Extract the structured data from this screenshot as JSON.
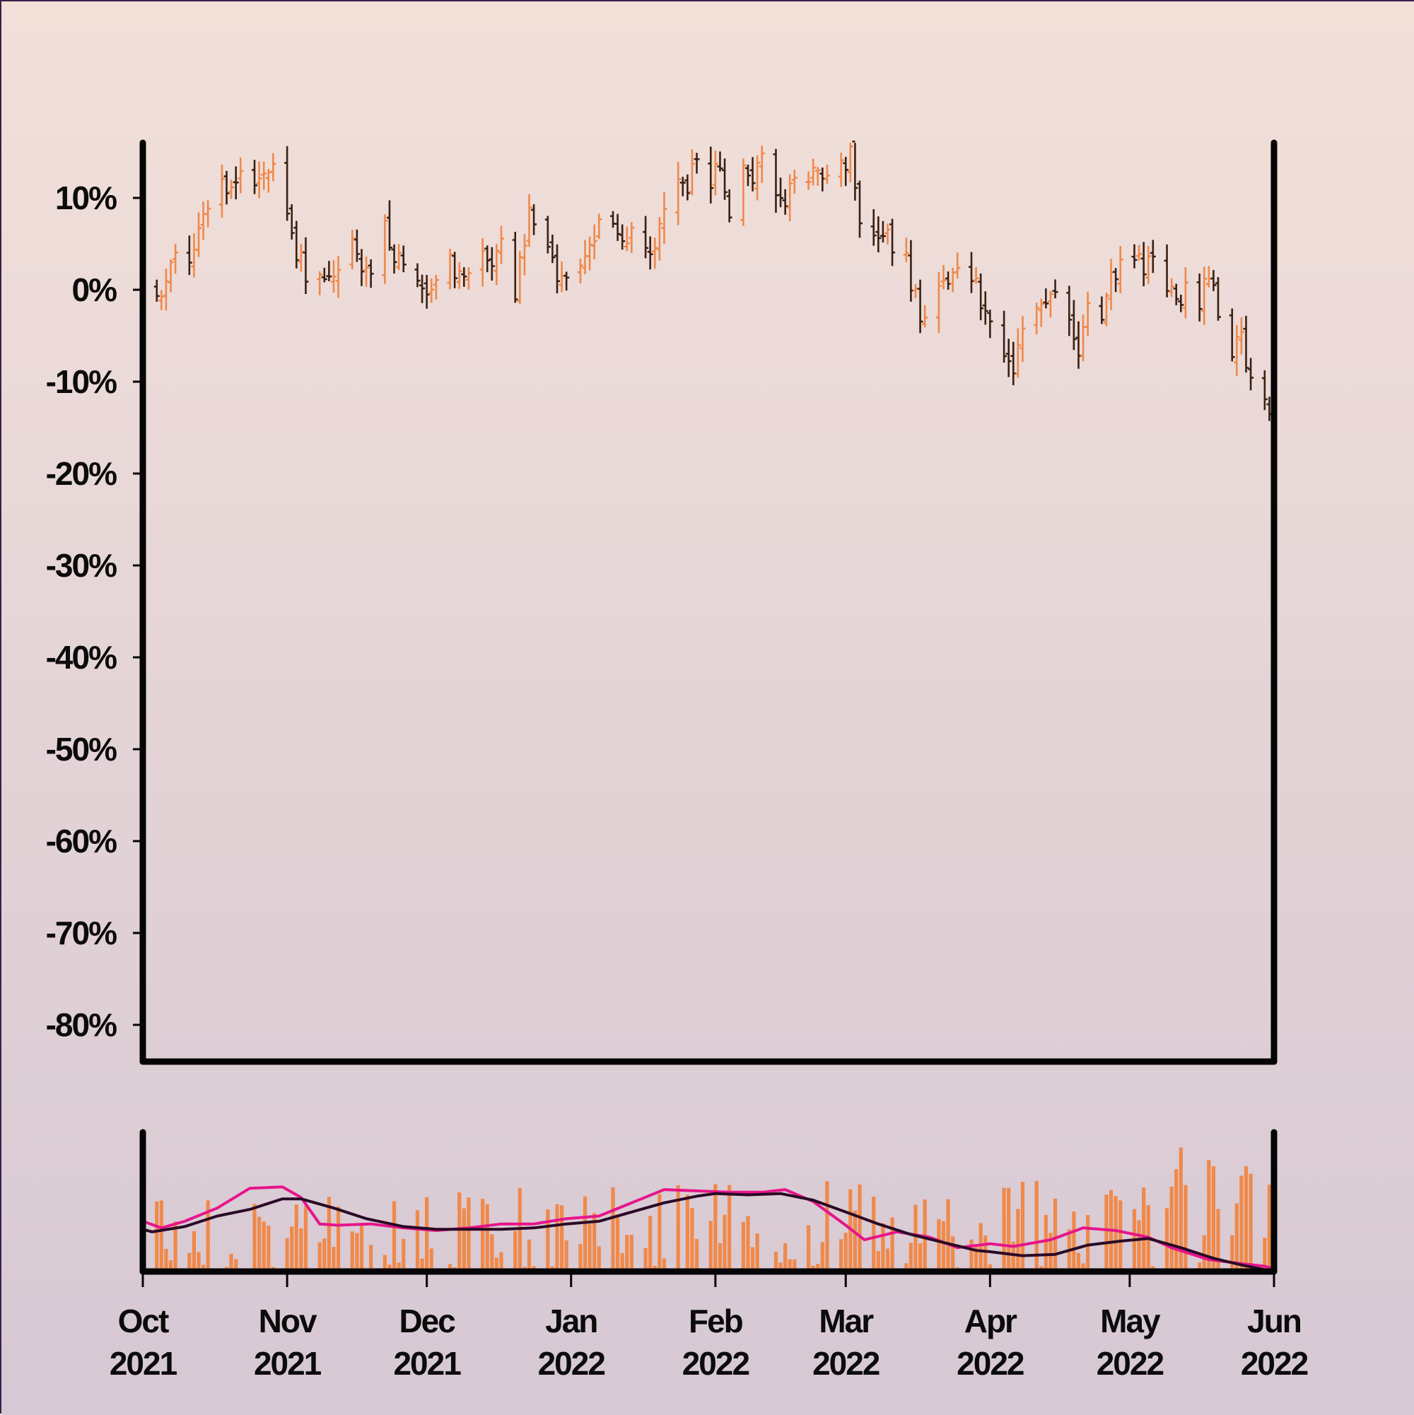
{
  "chart_data": [
    {
      "type": "ohlc",
      "panel": "price",
      "y_axis": {
        "ylim": [
          -84,
          16
        ],
        "ticks": [
          10,
          0,
          -10,
          -20,
          -30,
          -40,
          -50,
          -60,
          -70,
          -80
        ],
        "tick_labels": [
          "10%",
          "0%",
          "-10%",
          "-20%",
          "-30%",
          "-40%",
          "-50%",
          "-60%",
          "-70%",
          "-80%"
        ]
      },
      "x_axis": {
        "range": [
          "2021-10-01",
          "2022-06-01"
        ],
        "ticks": [
          "2021-10-01",
          "2021-11-01",
          "2021-12-01",
          "2022-01-01",
          "2022-02-01",
          "2022-03-01",
          "2022-04-01",
          "2022-05-01",
          "2022-06-01"
        ],
        "tick_labels": [
          [
            "Oct",
            "2021"
          ],
          [
            "Nov",
            "2021"
          ],
          [
            "Dec",
            "2021"
          ],
          [
            "Jan",
            "2022"
          ],
          [
            "Feb",
            "2022"
          ],
          [
            "Mar",
            "2022"
          ],
          [
            "Apr",
            "2022"
          ],
          [
            "May",
            "2022"
          ],
          [
            "Jun",
            "2022"
          ]
        ]
      },
      "close_path_percent_change": [
        [
          "2021-10-01",
          0
        ],
        [
          "2021-10-04",
          -1
        ],
        [
          "2021-10-08",
          3
        ],
        [
          "2021-10-12",
          4
        ],
        [
          "2021-10-15",
          9
        ],
        [
          "2021-10-18",
          12
        ],
        [
          "2021-10-20",
          11
        ],
        [
          "2021-10-22",
          13
        ],
        [
          "2021-10-25",
          11
        ],
        [
          "2021-10-27",
          13
        ],
        [
          "2021-10-29",
          14
        ],
        [
          "2021-11-01",
          8
        ],
        [
          "2021-11-03",
          4
        ],
        [
          "2021-11-05",
          2
        ],
        [
          "2021-11-08",
          1
        ],
        [
          "2021-11-11",
          2
        ],
        [
          "2021-11-15",
          6
        ],
        [
          "2021-11-17",
          3
        ],
        [
          "2021-11-19",
          1
        ],
        [
          "2021-11-22",
          7
        ],
        [
          "2021-11-24",
          4
        ],
        [
          "2021-11-26",
          2
        ],
        [
          "2021-11-30",
          0
        ],
        [
          "2021-12-02",
          -1
        ],
        [
          "2021-12-06",
          3
        ],
        [
          "2021-12-09",
          1
        ],
        [
          "2021-12-13",
          4
        ],
        [
          "2021-12-15",
          2
        ],
        [
          "2021-12-17",
          5
        ],
        [
          "2021-12-20",
          0
        ],
        [
          "2021-12-23",
          8
        ],
        [
          "2021-12-27",
          4
        ],
        [
          "2021-12-29",
          1
        ],
        [
          "2022-01-03",
          2
        ],
        [
          "2022-01-05",
          6
        ],
        [
          "2022-01-07",
          7
        ],
        [
          "2022-01-10",
          6
        ],
        [
          "2022-01-12",
          5
        ],
        [
          "2022-01-14",
          7
        ],
        [
          "2022-01-17",
          4
        ],
        [
          "2022-01-19",
          5
        ],
        [
          "2022-01-21",
          10
        ],
        [
          "2022-01-24",
          13
        ],
        [
          "2022-01-26",
          11
        ],
        [
          "2022-01-28",
          15
        ],
        [
          "2022-01-31",
          11
        ],
        [
          "2022-02-02",
          14
        ],
        [
          "2022-02-04",
          7
        ],
        [
          "2022-02-07",
          13
        ],
        [
          "2022-02-09",
          12
        ],
        [
          "2022-02-11",
          14
        ],
        [
          "2022-02-14",
          10
        ],
        [
          "2022-02-16",
          8
        ],
        [
          "2022-02-18",
          13
        ],
        [
          "2022-02-21",
          11
        ],
        [
          "2022-02-23",
          14
        ],
        [
          "2022-02-25",
          12
        ],
        [
          "2022-02-28",
          13
        ],
        [
          "2022-03-02",
          15
        ],
        [
          "2022-03-04",
          7
        ],
        [
          "2022-03-08",
          5
        ],
        [
          "2022-03-10",
          6
        ],
        [
          "2022-03-14",
          3
        ],
        [
          "2022-03-16",
          -1
        ],
        [
          "2022-03-18",
          -4
        ],
        [
          "2022-03-22",
          1
        ],
        [
          "2022-03-25",
          3
        ],
        [
          "2022-03-28",
          2
        ],
        [
          "2022-03-31",
          -3
        ],
        [
          "2022-04-04",
          -7
        ],
        [
          "2022-04-06",
          -9
        ],
        [
          "2022-04-08",
          -5
        ],
        [
          "2022-04-12",
          -1
        ],
        [
          "2022-04-14",
          0
        ],
        [
          "2022-04-18",
          -3
        ],
        [
          "2022-04-20",
          -7
        ],
        [
          "2022-04-22",
          -2
        ],
        [
          "2022-04-25",
          -3
        ],
        [
          "2022-04-27",
          1
        ],
        [
          "2022-04-29",
          3
        ],
        [
          "2022-05-02",
          4
        ],
        [
          "2022-05-04",
          2
        ],
        [
          "2022-05-06",
          3
        ],
        [
          "2022-05-09",
          1
        ],
        [
          "2022-05-11",
          -2
        ],
        [
          "2022-05-13",
          1
        ],
        [
          "2022-05-16",
          -1
        ],
        [
          "2022-05-18",
          2
        ],
        [
          "2022-05-20",
          -2
        ],
        [
          "2022-05-23",
          -7
        ],
        [
          "2022-05-25",
          -5
        ],
        [
          "2022-05-26",
          -8
        ],
        [
          "2022-05-27",
          -10
        ],
        [
          "2022-05-30",
          -13
        ],
        [
          "2022-06-01",
          -15
        ]
      ],
      "colors": {
        "up": "#f0894a",
        "down": "#3a2013"
      }
    },
    {
      "type": "bar",
      "panel": "volume",
      "bar_color": "#f0894a",
      "series": [
        {
          "role": "short_moving_average",
          "color": "#e6158a",
          "points": [
            [
              "2021-10-01",
              0.38
            ],
            [
              "2021-10-05",
              0.33
            ],
            [
              "2021-10-10",
              0.38
            ],
            [
              "2021-10-17",
              0.48
            ],
            [
              "2021-10-24",
              0.63
            ],
            [
              "2021-10-31",
              0.64
            ],
            [
              "2021-11-04",
              0.56
            ],
            [
              "2021-11-08",
              0.36
            ],
            [
              "2021-11-12",
              0.35
            ],
            [
              "2021-11-19",
              0.36
            ],
            [
              "2021-11-26",
              0.33
            ],
            [
              "2021-12-03",
              0.31
            ],
            [
              "2021-12-10",
              0.33
            ],
            [
              "2021-12-17",
              0.36
            ],
            [
              "2021-12-24",
              0.36
            ],
            [
              "2021-12-31",
              0.4
            ],
            [
              "2022-01-07",
              0.42
            ],
            [
              "2022-01-14",
              0.52
            ],
            [
              "2022-01-21",
              0.62
            ],
            [
              "2022-01-28",
              0.61
            ],
            [
              "2022-02-04",
              0.6
            ],
            [
              "2022-02-11",
              0.6
            ],
            [
              "2022-02-16",
              0.62
            ],
            [
              "2022-02-22",
              0.53
            ],
            [
              "2022-03-01",
              0.35
            ],
            [
              "2022-03-05",
              0.24
            ],
            [
              "2022-03-12",
              0.3
            ],
            [
              "2022-03-19",
              0.26
            ],
            [
              "2022-03-25",
              0.18
            ],
            [
              "2022-04-01",
              0.21
            ],
            [
              "2022-04-06",
              0.19
            ],
            [
              "2022-04-14",
              0.24
            ],
            [
              "2022-04-21",
              0.33
            ],
            [
              "2022-04-28",
              0.31
            ],
            [
              "2022-05-05",
              0.26
            ],
            [
              "2022-05-10",
              0.18
            ],
            [
              "2022-05-18",
              0.09
            ],
            [
              "2022-05-25",
              0.06
            ],
            [
              "2022-05-30",
              0.04
            ],
            [
              "2022-06-01",
              0.02
            ]
          ]
        },
        {
          "role": "long_moving_average",
          "color": "#2a0a26",
          "points": [
            [
              "2021-10-01",
              0.32
            ],
            [
              "2021-10-03",
              0.3
            ],
            [
              "2021-10-10",
              0.34
            ],
            [
              "2021-10-17",
              0.42
            ],
            [
              "2021-10-24",
              0.47
            ],
            [
              "2021-10-31",
              0.55
            ],
            [
              "2021-11-04",
              0.55
            ],
            [
              "2021-11-11",
              0.48
            ],
            [
              "2021-11-18",
              0.4
            ],
            [
              "2021-11-26",
              0.34
            ],
            [
              "2021-12-03",
              0.32
            ],
            [
              "2021-12-10",
              0.32
            ],
            [
              "2021-12-17",
              0.32
            ],
            [
              "2021-12-24",
              0.33
            ],
            [
              "2021-12-31",
              0.36
            ],
            [
              "2022-01-07",
              0.38
            ],
            [
              "2022-01-14",
              0.45
            ],
            [
              "2022-01-21",
              0.52
            ],
            [
              "2022-01-28",
              0.57
            ],
            [
              "2022-02-01",
              0.59
            ],
            [
              "2022-02-08",
              0.58
            ],
            [
              "2022-02-15",
              0.59
            ],
            [
              "2022-02-22",
              0.54
            ],
            [
              "2022-03-01",
              0.45
            ],
            [
              "2022-03-08",
              0.36
            ],
            [
              "2022-03-15",
              0.28
            ],
            [
              "2022-03-22",
              0.22
            ],
            [
              "2022-03-29",
              0.16
            ],
            [
              "2022-04-01",
              0.15
            ],
            [
              "2022-04-08",
              0.12
            ],
            [
              "2022-04-15",
              0.13
            ],
            [
              "2022-04-22",
              0.2
            ],
            [
              "2022-04-29",
              0.23
            ],
            [
              "2022-05-05",
              0.25
            ],
            [
              "2022-05-12",
              0.18
            ],
            [
              "2022-05-19",
              0.1
            ],
            [
              "2022-05-25",
              0.05
            ],
            [
              "2022-06-01",
              0.0
            ]
          ]
        }
      ]
    }
  ]
}
